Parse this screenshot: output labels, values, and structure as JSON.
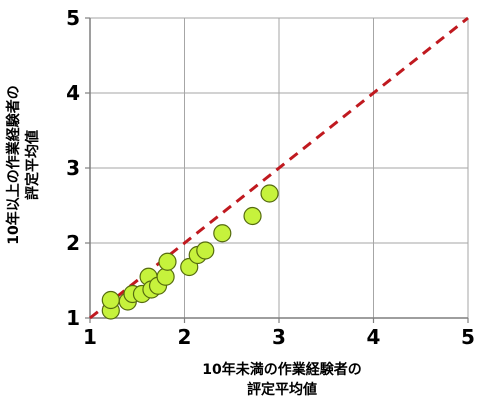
{
  "chart_data": {
    "type": "scatter",
    "title": "",
    "xlabel_lines": [
      "10年未満の作業経験者の",
      "評定平均値"
    ],
    "ylabel_lines": [
      "10年以上の作業経験者の",
      "評定平均値"
    ],
    "xlim": [
      1,
      5
    ],
    "ylim": [
      1,
      5
    ],
    "xticks": [
      1,
      2,
      3,
      4,
      5
    ],
    "yticks": [
      1,
      2,
      3,
      4,
      5
    ],
    "grid": true,
    "legend": "none",
    "reference_line": {
      "from": [
        1,
        1
      ],
      "to": [
        5,
        5
      ],
      "style": "dashed",
      "color": "#c0191f"
    },
    "marker_fill": "#c6f23c",
    "marker_stroke": "#556b0f",
    "points": [
      {
        "x": 1.22,
        "y": 1.1
      },
      {
        "x": 1.22,
        "y": 1.24
      },
      {
        "x": 1.4,
        "y": 1.22
      },
      {
        "x": 1.45,
        "y": 1.32
      },
      {
        "x": 1.55,
        "y": 1.32
      },
      {
        "x": 1.62,
        "y": 1.55
      },
      {
        "x": 1.65,
        "y": 1.38
      },
      {
        "x": 1.72,
        "y": 1.43
      },
      {
        "x": 1.8,
        "y": 1.55
      },
      {
        "x": 1.82,
        "y": 1.75
      },
      {
        "x": 2.05,
        "y": 1.68
      },
      {
        "x": 2.14,
        "y": 1.84
      },
      {
        "x": 2.22,
        "y": 1.9
      },
      {
        "x": 2.4,
        "y": 2.13
      },
      {
        "x": 2.72,
        "y": 2.36
      },
      {
        "x": 2.9,
        "y": 2.66
      }
    ]
  }
}
